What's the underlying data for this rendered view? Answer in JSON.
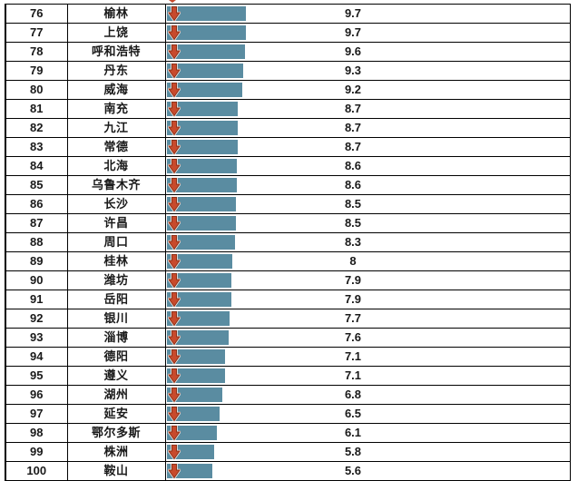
{
  "colors": {
    "bar": "#5a8ca1",
    "arrow": "#c84a2c",
    "arrow_outline": "#8e3119",
    "arrow_halo": "#f3ece7",
    "grid_border": "#000000",
    "text": "#1a1a1a"
  },
  "icons": {
    "row_icon": "red-down-arrow-icon"
  },
  "chart_data": {
    "type": "table",
    "title": "",
    "legend": "none",
    "layout_hints": {
      "bars": "horizontal data bars inside third column, length proportional to value",
      "icon": "red down arrow overlaid at left end of each bar",
      "grid": "black ruled rows, no header row visible, ranks 76-100 (list cropped top and bottom)"
    },
    "rows": [
      {
        "rank": 76,
        "city": "榆林",
        "value": 9.7
      },
      {
        "rank": 77,
        "city": "上饶",
        "value": 9.7
      },
      {
        "rank": 78,
        "city": "呼和浩特",
        "value": 9.6
      },
      {
        "rank": 79,
        "city": "丹东",
        "value": 9.3
      },
      {
        "rank": 80,
        "city": "威海",
        "value": 9.2
      },
      {
        "rank": 81,
        "city": "南充",
        "value": 8.7
      },
      {
        "rank": 82,
        "city": "九江",
        "value": 8.7
      },
      {
        "rank": 83,
        "city": "常德",
        "value": 8.7
      },
      {
        "rank": 84,
        "city": "北海",
        "value": 8.6
      },
      {
        "rank": 85,
        "city": "乌鲁木齐",
        "value": 8.6
      },
      {
        "rank": 86,
        "city": "长沙",
        "value": 8.5
      },
      {
        "rank": 87,
        "city": "许昌",
        "value": 8.5
      },
      {
        "rank": 88,
        "city": "周口",
        "value": 8.3
      },
      {
        "rank": 89,
        "city": "桂林",
        "value": 8
      },
      {
        "rank": 90,
        "city": "潍坊",
        "value": 7.9
      },
      {
        "rank": 91,
        "city": "岳阳",
        "value": 7.9
      },
      {
        "rank": 92,
        "city": "银川",
        "value": 7.7
      },
      {
        "rank": 93,
        "city": "淄博",
        "value": 7.6
      },
      {
        "rank": 94,
        "city": "德阳",
        "value": 7.1
      },
      {
        "rank": 95,
        "city": "遵义",
        "value": 7.1
      },
      {
        "rank": 96,
        "city": "湖州",
        "value": 6.8
      },
      {
        "rank": 97,
        "city": "延安",
        "value": 6.5
      },
      {
        "rank": 98,
        "city": "鄂尔多斯",
        "value": 6.1
      },
      {
        "rank": 99,
        "city": "株洲",
        "value": 5.8
      },
      {
        "rank": 100,
        "city": "鞍山",
        "value": 5.6
      }
    ]
  }
}
